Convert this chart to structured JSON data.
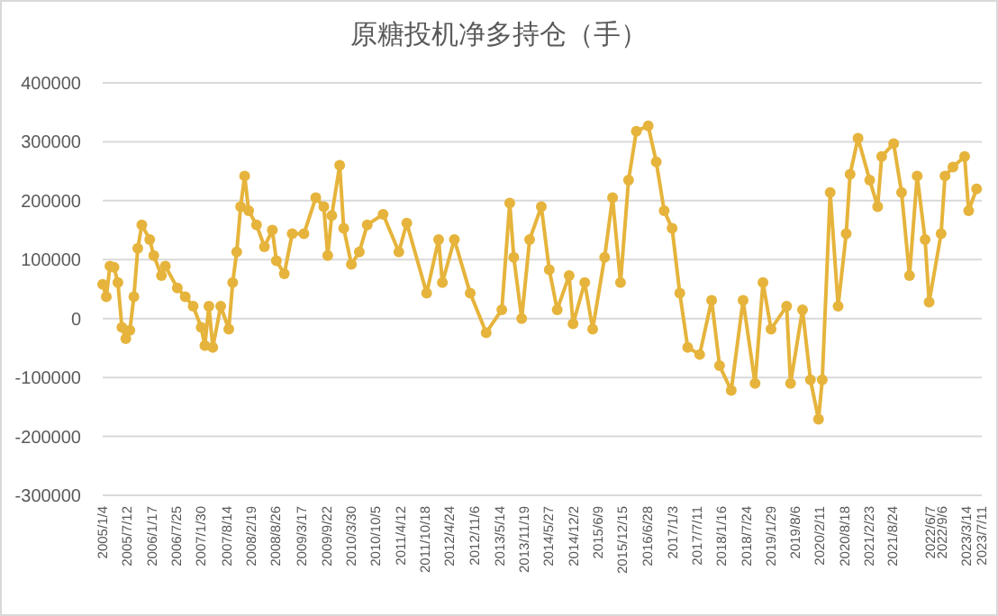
{
  "chart_data": {
    "type": "line",
    "title": "原糖投机净多持仓（手）",
    "color": "#e6b43c",
    "marker": "circle",
    "grid": "y",
    "x": [
      "2005-01-04",
      "2005-02",
      "2005-03",
      "2005-04",
      "2005-05",
      "2005-06",
      "2005-07",
      "2005-08",
      "2005-09",
      "2005-10",
      "2005-11",
      "2006-01",
      "2006-02",
      "2006-04",
      "2006-05",
      "2006-08",
      "2006-10",
      "2006-12",
      "2007-02",
      "2007-03",
      "2007-04",
      "2007-05",
      "2007-07",
      "2007-09",
      "2007-10",
      "2007-11",
      "2007-12",
      "2008-01",
      "2008-02",
      "2008-04",
      "2008-06",
      "2008-08",
      "2008-09",
      "2008-11",
      "2009-01",
      "2009-04",
      "2009-07",
      "2009-09",
      "2009-10",
      "2009-11",
      "2010-01",
      "2010-02",
      "2010-04",
      "2010-06",
      "2010-08",
      "2010-12",
      "2011-04",
      "2011-06",
      "2011-11",
      "2012-02",
      "2012-03",
      "2012-06",
      "2012-10",
      "2013-02",
      "2013-06",
      "2013-08",
      "2013-09",
      "2013-11",
      "2014-01",
      "2014-04",
      "2014-06",
      "2014-08",
      "2014-11",
      "2014-12",
      "2015-03",
      "2015-05",
      "2015-08",
      "2015-10",
      "2015-12",
      "2016-02",
      "2016-04",
      "2016-07",
      "2016-09",
      "2016-11",
      "2017-01",
      "2017-03",
      "2017-05",
      "2017-08",
      "2017-11",
      "2018-01",
      "2018-04",
      "2018-07",
      "2018-10",
      "2018-12",
      "2019-02",
      "2019-06",
      "2019-07",
      "2019-10",
      "2019-12",
      "2020-02",
      "2020-03",
      "2020-05",
      "2020-07",
      "2020-09",
      "2020-10",
      "2020-12",
      "2021-03",
      "2021-05",
      "2021-06",
      "2021-09",
      "2021-11",
      "2022-01",
      "2022-03",
      "2022-05",
      "2022-06",
      "2022-09",
      "2022-10",
      "2022-12",
      "2023-03",
      "2023-04",
      "2023-06"
    ],
    "values": [
      58000,
      37000,
      89000,
      87000,
      61000,
      -15000,
      -34000,
      -20000,
      37000,
      119000,
      159000,
      134000,
      107000,
      73000,
      89000,
      52000,
      37000,
      21000,
      -15000,
      -46000,
      21000,
      -49000,
      21000,
      -18000,
      61000,
      113000,
      190000,
      242000,
      183000,
      159000,
      122000,
      150000,
      98000,
      76000,
      144000,
      144000,
      205000,
      190000,
      107000,
      175000,
      260000,
      153000,
      92000,
      113000,
      159000,
      177000,
      113000,
      162000,
      43000,
      134000,
      61000,
      134000,
      43000,
      -24000,
      15000,
      196000,
      104000,
      0,
      134000,
      190000,
      83000,
      15000,
      73000,
      -9000,
      61000,
      -18000,
      104000,
      205000,
      61000,
      235000,
      318000,
      327000,
      266000,
      183000,
      153000,
      43000,
      -49000,
      -61000,
      31000,
      -80000,
      -122000,
      31000,
      -110000,
      61000,
      -18000,
      21000,
      -110000,
      15000,
      -104000,
      -171000,
      -104000,
      214000,
      21000,
      144000,
      245000,
      306000,
      235000,
      190000,
      275000,
      297000,
      214000,
      73000,
      242000,
      134000,
      28000,
      144000,
      242000,
      257000,
      275000,
      183000,
      220000
    ],
    "xlim": [
      "2005-01-04",
      "2023-07-11"
    ],
    "xticks": [
      {
        "value": "2005-01-04",
        "label": "2005/1/4"
      },
      {
        "value": "2005-07-12",
        "label": "2005/7/12"
      },
      {
        "value": "2006-01-17",
        "label": "2006/1/17"
      },
      {
        "value": "2006-07-25",
        "label": "2006/7/25"
      },
      {
        "value": "2007-01-30",
        "label": "2007/1/30"
      },
      {
        "value": "2007-08-14",
        "label": "2007/8/14"
      },
      {
        "value": "2008-02-19",
        "label": "2008/2/19"
      },
      {
        "value": "2008-08-26",
        "label": "2008/8/26"
      },
      {
        "value": "2009-03-17",
        "label": "2009/3/17"
      },
      {
        "value": "2009-09-22",
        "label": "2009/9/22"
      },
      {
        "value": "2010-03-30",
        "label": "2010/3/30"
      },
      {
        "value": "2010-10-05",
        "label": "2010/10/5"
      },
      {
        "value": "2011-04-12",
        "label": "2011/4/12"
      },
      {
        "value": "2011-10-18",
        "label": "2011/10/18"
      },
      {
        "value": "2012-04-24",
        "label": "2012/4/24"
      },
      {
        "value": "2012-11-06",
        "label": "2012/11/6"
      },
      {
        "value": "2013-05-14",
        "label": "2013/5/14"
      },
      {
        "value": "2013-11-19",
        "label": "2013/11/19"
      },
      {
        "value": "2014-05-27",
        "label": "2014/5/27"
      },
      {
        "value": "2014-12-02",
        "label": "2014/12/2"
      },
      {
        "value": "2015-06-09",
        "label": "2015/6/9"
      },
      {
        "value": "2015-12-15",
        "label": "2015/12/15"
      },
      {
        "value": "2016-06-28",
        "label": "2016/6/28"
      },
      {
        "value": "2017-01-03",
        "label": "2017/1/3"
      },
      {
        "value": "2017-07-11",
        "label": "2017/7/11"
      },
      {
        "value": "2018-01-16",
        "label": "2018/1/16"
      },
      {
        "value": "2018-07-24",
        "label": "2018/7/24"
      },
      {
        "value": "2019-01-29",
        "label": "2019/1/29"
      },
      {
        "value": "2019-08-06",
        "label": "2019/8/6"
      },
      {
        "value": "2020-02-11",
        "label": "2020/2/11"
      },
      {
        "value": "2020-08-18",
        "label": "2020/8/18"
      },
      {
        "value": "2021-02-23",
        "label": "2021/2/23"
      },
      {
        "value": "2021-08-24",
        "label": "2021/8/24"
      },
      {
        "value": "2022-06-07",
        "label": "2022/6/7"
      },
      {
        "value": "2022-09-06",
        "label": "2022/9/6"
      },
      {
        "value": "2023-03-14",
        "label": "2023/3/14"
      },
      {
        "value": "2023-07-11",
        "label": "2023/7/11"
      }
    ],
    "ylim": [
      -300000,
      400000
    ],
    "yticks": [
      -300000,
      -200000,
      -100000,
      0,
      100000,
      200000,
      300000,
      400000
    ]
  }
}
